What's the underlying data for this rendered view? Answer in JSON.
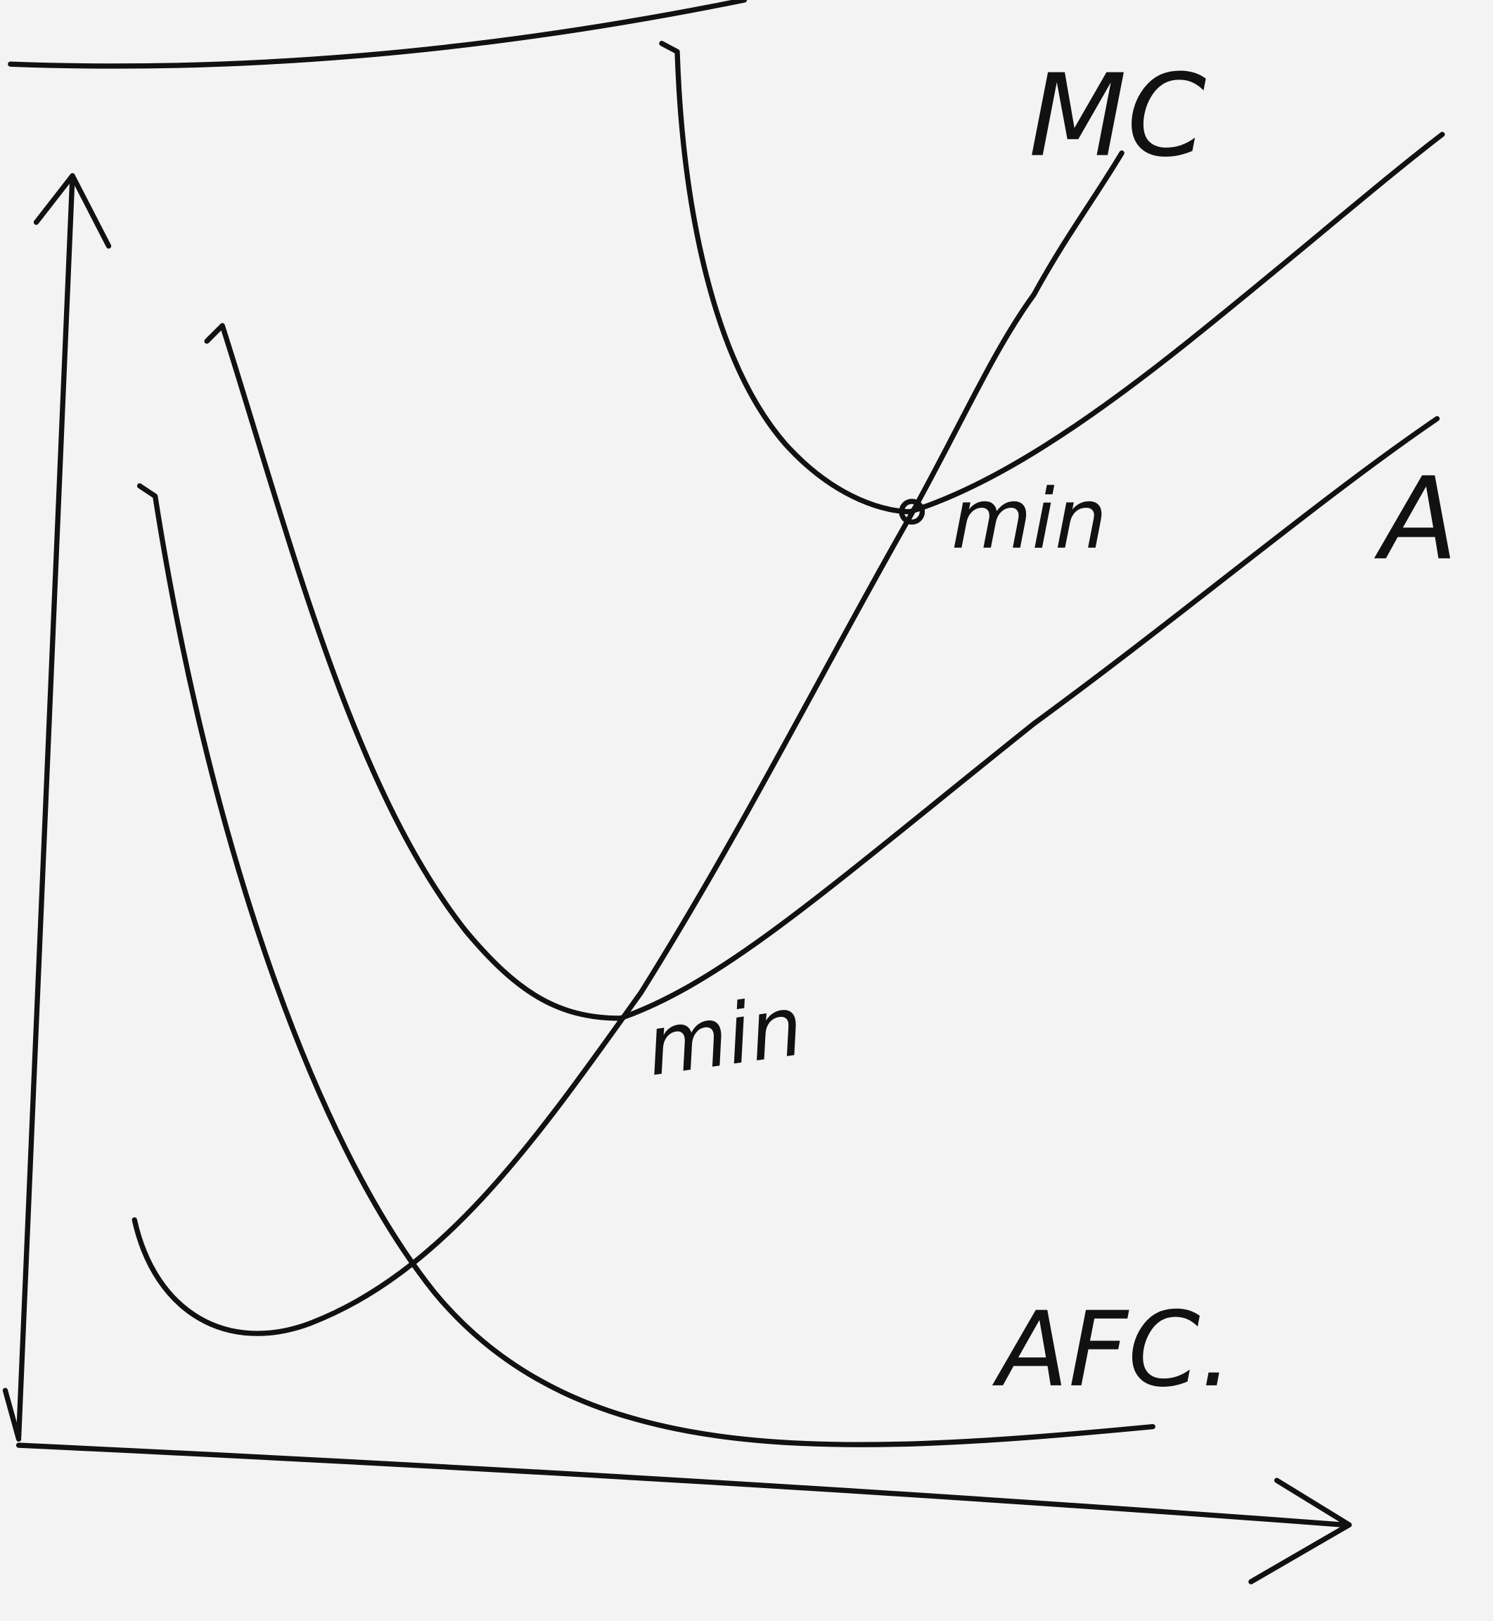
{
  "labels": {
    "mc": "MC",
    "min_upper": "min",
    "min_lower": "min",
    "afc": "AFC.",
    "right_cut": "A"
  }
}
